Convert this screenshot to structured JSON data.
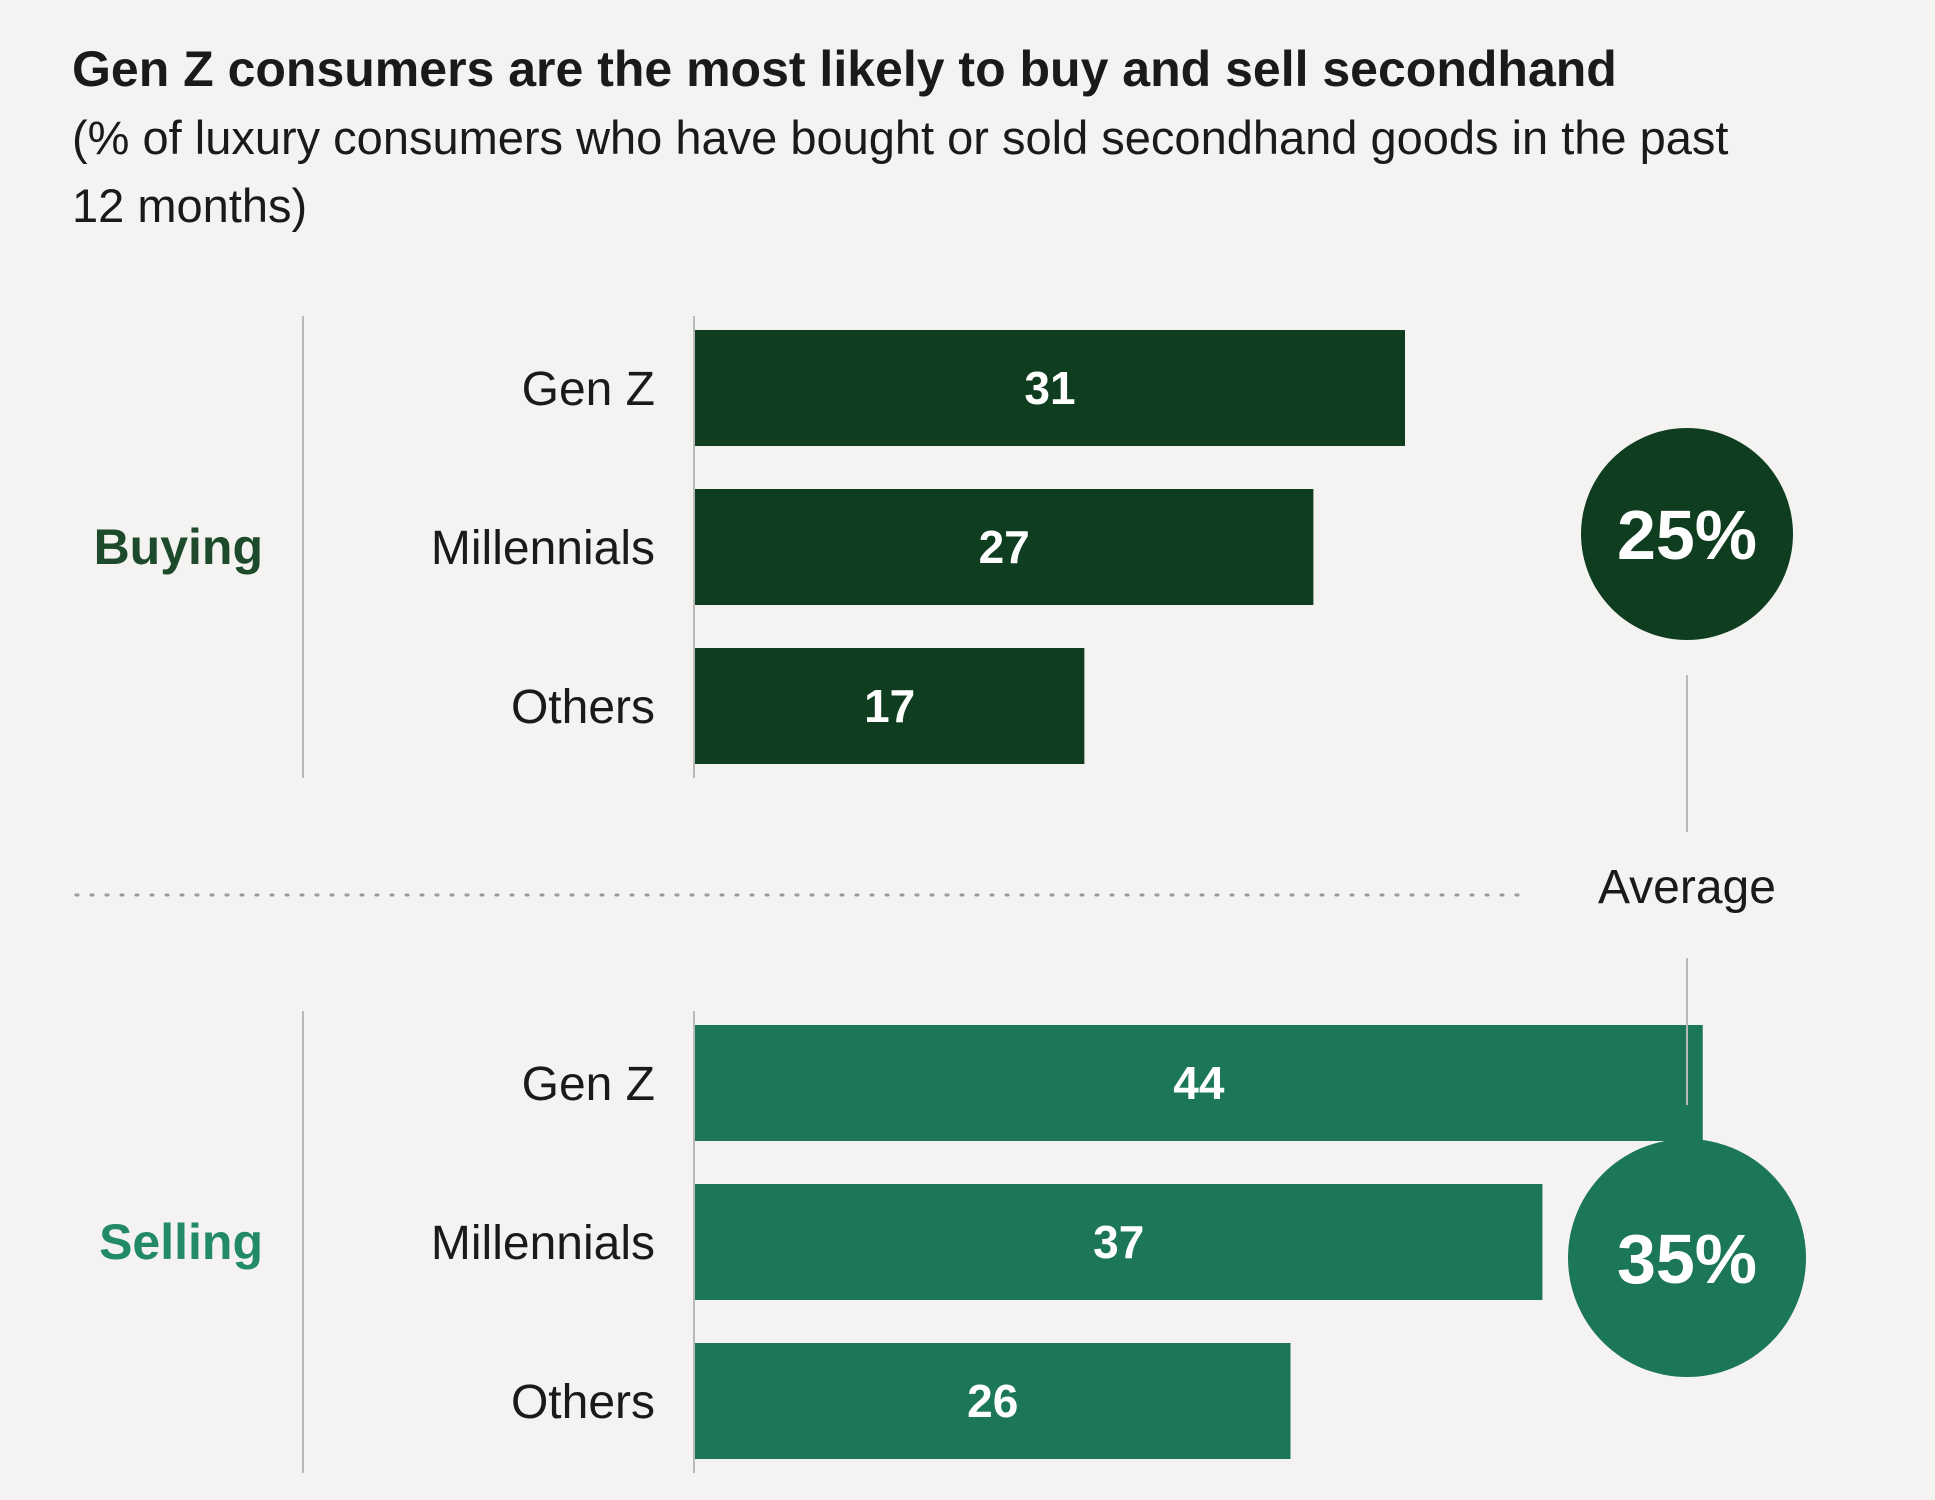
{
  "chart_data": {
    "type": "bar",
    "orientation": "horizontal",
    "title": "Gen Z consumers are the most likely to buy and sell secondhand",
    "subtitle": "(% of luxury consumers who have bought or sold secondhand goods in the past 12 months)",
    "categories": [
      "Gen Z",
      "Millennials",
      "Others"
    ],
    "series": [
      {
        "name": "Buying",
        "values": [
          31,
          27,
          17
        ],
        "color": "#0f3d1f"
      },
      {
        "name": "Selling",
        "values": [
          44,
          37,
          26
        ],
        "color": "#1b7758"
      }
    ],
    "average_label": "Average",
    "averages": [
      {
        "series": "Buying",
        "label": "25%",
        "value": 25,
        "color": "#0f3d1f"
      },
      {
        "series": "Selling",
        "label": "35%",
        "value": 35,
        "color": "#1b7758"
      }
    ],
    "xlim": [
      0,
      50
    ],
    "grid": false,
    "legend": "none"
  }
}
